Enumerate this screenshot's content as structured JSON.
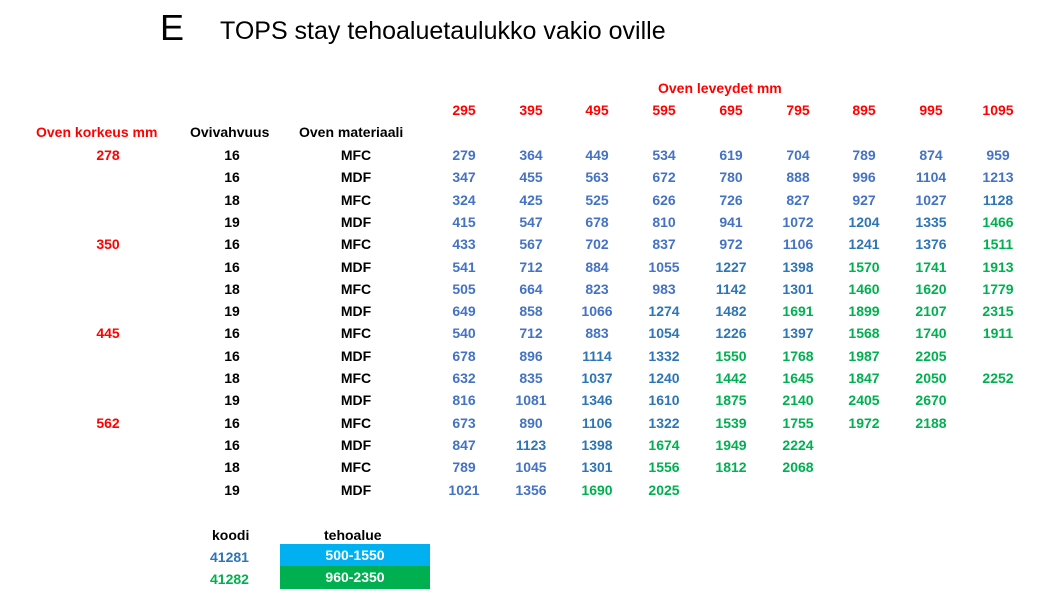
{
  "letter": "E",
  "title": "TOPS stay tehoaluetaulukko vakio oville",
  "widths_header": "Oven leveydet mm",
  "widths": [
    "295",
    "395",
    "495",
    "595",
    "695",
    "795",
    "895",
    "995",
    "1095"
  ],
  "col_headers": {
    "height": "Oven korkeus mm",
    "thickness": "Ovivahvuus",
    "material": "Oven materiaali"
  },
  "colors": {
    "red": "#ff0000",
    "blue_light": "#4472c4",
    "blue_dark": "#2e75b6",
    "green": "#00b050",
    "legend_blue": "#00b0f0",
    "legend_green": "#00b050"
  },
  "rows": [
    {
      "height": "278",
      "thickness": "16",
      "material": "MFC",
      "values": [
        "279",
        "364",
        "449",
        "534",
        "619",
        "704",
        "789",
        "874",
        "959"
      ],
      "codes": [
        1,
        1,
        1,
        1,
        1,
        1,
        1,
        1,
        1
      ]
    },
    {
      "height": "",
      "thickness": "16",
      "material": "MDF",
      "values": [
        "347",
        "455",
        "563",
        "672",
        "780",
        "888",
        "996",
        "1104",
        "1213"
      ],
      "codes": [
        1,
        1,
        1,
        1,
        1,
        1,
        1,
        1,
        1
      ]
    },
    {
      "height": "",
      "thickness": "18",
      "material": "MFC",
      "values": [
        "324",
        "425",
        "525",
        "626",
        "726",
        "827",
        "927",
        "1027",
        "1128"
      ],
      "codes": [
        1,
        1,
        1,
        1,
        1,
        1,
        1,
        1,
        2
      ]
    },
    {
      "height": "",
      "thickness": "19",
      "material": "MDF",
      "values": [
        "415",
        "547",
        "678",
        "810",
        "941",
        "1072",
        "1204",
        "1335",
        "1466"
      ],
      "codes": [
        1,
        1,
        1,
        1,
        1,
        1,
        2,
        2,
        3
      ]
    },
    {
      "height": "350",
      "thickness": "16",
      "material": "MFC",
      "values": [
        "433",
        "567",
        "702",
        "837",
        "972",
        "1106",
        "1241",
        "1376",
        "1511"
      ],
      "codes": [
        1,
        1,
        1,
        1,
        1,
        1,
        2,
        2,
        3
      ]
    },
    {
      "height": "",
      "thickness": "16",
      "material": "MDF",
      "values": [
        "541",
        "712",
        "884",
        "1055",
        "1227",
        "1398",
        "1570",
        "1741",
        "1913"
      ],
      "codes": [
        1,
        1,
        1,
        1,
        2,
        2,
        3,
        3,
        3
      ]
    },
    {
      "height": "",
      "thickness": "18",
      "material": "MFC",
      "values": [
        "505",
        "664",
        "823",
        "983",
        "1142",
        "1301",
        "1460",
        "1620",
        "1779"
      ],
      "codes": [
        1,
        1,
        1,
        1,
        2,
        2,
        3,
        3,
        3
      ]
    },
    {
      "height": "",
      "thickness": "19",
      "material": "MDF",
      "values": [
        "649",
        "858",
        "1066",
        "1274",
        "1482",
        "1691",
        "1899",
        "2107",
        "2315"
      ],
      "codes": [
        1,
        1,
        1,
        2,
        2,
        3,
        3,
        3,
        3
      ]
    },
    {
      "height": "445",
      "thickness": "16",
      "material": "MFC",
      "values": [
        "540",
        "712",
        "883",
        "1054",
        "1226",
        "1397",
        "1568",
        "1740",
        "1911"
      ],
      "codes": [
        1,
        1,
        1,
        2,
        2,
        2,
        3,
        3,
        3
      ]
    },
    {
      "height": "",
      "thickness": "16",
      "material": "MDF",
      "values": [
        "678",
        "896",
        "1114",
        "1332",
        "1550",
        "1768",
        "1987",
        "2205",
        ""
      ],
      "codes": [
        1,
        1,
        2,
        2,
        3,
        3,
        3,
        3,
        0
      ]
    },
    {
      "height": "",
      "thickness": "18",
      "material": "MFC",
      "values": [
        "632",
        "835",
        "1037",
        "1240",
        "1442",
        "1645",
        "1847",
        "2050",
        "2252"
      ],
      "codes": [
        1,
        1,
        2,
        2,
        3,
        3,
        3,
        3,
        3
      ]
    },
    {
      "height": "",
      "thickness": "19",
      "material": "MDF",
      "values": [
        "816",
        "1081",
        "1346",
        "1610",
        "1875",
        "2140",
        "2405",
        "2670",
        ""
      ],
      "codes": [
        1,
        1,
        2,
        2,
        3,
        3,
        3,
        3,
        0
      ]
    },
    {
      "height": "562",
      "thickness": "16",
      "material": "MFC",
      "values": [
        "673",
        "890",
        "1106",
        "1322",
        "1539",
        "1755",
        "1972",
        "2188",
        ""
      ],
      "codes": [
        1,
        1,
        2,
        2,
        3,
        3,
        3,
        3,
        0
      ]
    },
    {
      "height": "",
      "thickness": "16",
      "material": "MDF",
      "values": [
        "847",
        "1123",
        "1398",
        "1674",
        "1949",
        "2224",
        "",
        "",
        ""
      ],
      "codes": [
        1,
        2,
        2,
        3,
        3,
        3,
        0,
        0,
        0
      ]
    },
    {
      "height": "",
      "thickness": "18",
      "material": "MFC",
      "values": [
        "789",
        "1045",
        "1301",
        "1556",
        "1812",
        "2068",
        "",
        "",
        ""
      ],
      "codes": [
        1,
        1,
        2,
        3,
        3,
        3,
        0,
        0,
        0
      ]
    },
    {
      "height": "",
      "thickness": "19",
      "material": "MDF",
      "values": [
        "1021",
        "1356",
        "1690",
        "2025",
        "",
        "",
        "",
        "",
        ""
      ],
      "codes": [
        1,
        1,
        3,
        3,
        0,
        0,
        0,
        0,
        0
      ]
    }
  ],
  "legend": {
    "code_header": "koodi",
    "range_header": "tehoalue",
    "items": [
      {
        "code": "41281",
        "range": "500-1550"
      },
      {
        "code": "41282",
        "range": "960-2350"
      }
    ]
  }
}
